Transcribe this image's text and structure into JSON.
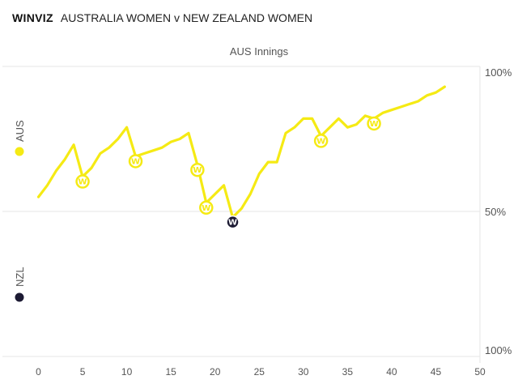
{
  "header": {
    "brand": "WINVIZ",
    "match": "AUSTRALIA WOMEN v NEW ZEALAND WOMEN"
  },
  "chart_data": {
    "type": "line",
    "title": "AUS Innings",
    "xlabel": "",
    "ylabel": "",
    "x_ticks": [
      "0",
      "5",
      "10",
      "15",
      "20",
      "25",
      "30",
      "35",
      "40",
      "45",
      "50"
    ],
    "xlim": [
      -2,
      50
    ],
    "ylim": [
      0,
      100
    ],
    "y_tick_labels": [
      {
        "value": 100,
        "label": "100%"
      },
      {
        "value": 50,
        "label": "50%"
      },
      {
        "value": 0,
        "label": "100%"
      }
    ],
    "team_top": "AUS",
    "team_bottom": "NZL",
    "colors": {
      "aus": "#f5ea14",
      "nzl": "#1c1a33",
      "grid": "#e6e6e6"
    },
    "series": [
      {
        "values": [
          [
            0,
            55
          ],
          [
            1,
            59
          ],
          [
            2,
            64
          ],
          [
            3,
            68
          ],
          [
            4,
            73
          ],
          [
            5,
            62
          ],
          [
            6,
            65
          ],
          [
            7,
            70
          ],
          [
            8,
            72
          ],
          [
            9,
            75
          ],
          [
            10,
            79
          ],
          [
            11,
            69
          ],
          [
            12,
            70
          ],
          [
            13,
            71
          ],
          [
            14,
            72
          ],
          [
            15,
            74
          ],
          [
            16,
            75
          ],
          [
            17,
            77
          ],
          [
            18,
            66
          ],
          [
            19,
            53
          ],
          [
            20,
            56
          ],
          [
            21,
            59
          ],
          [
            22,
            48
          ],
          [
            23,
            51
          ],
          [
            24,
            56
          ],
          [
            25,
            63
          ],
          [
            26,
            67
          ],
          [
            27,
            67
          ],
          [
            28,
            77
          ],
          [
            29,
            79
          ],
          [
            30,
            82
          ],
          [
            31,
            82
          ],
          [
            32,
            76
          ],
          [
            33,
            79
          ],
          [
            34,
            82
          ],
          [
            35,
            79
          ],
          [
            36,
            80
          ],
          [
            37,
            83
          ],
          [
            38,
            82
          ],
          [
            39,
            84
          ],
          [
            40,
            85
          ],
          [
            41,
            86
          ],
          [
            42,
            87
          ],
          [
            43,
            88
          ],
          [
            44,
            90
          ],
          [
            45,
            91
          ],
          [
            46,
            93
          ]
        ]
      }
    ],
    "wickets": [
      {
        "x": 5,
        "y": 62,
        "team": "aus"
      },
      {
        "x": 11,
        "y": 69,
        "team": "aus"
      },
      {
        "x": 18,
        "y": 66,
        "team": "aus"
      },
      {
        "x": 19,
        "y": 53,
        "team": "aus"
      },
      {
        "x": 22,
        "y": 48,
        "team": "nzl"
      },
      {
        "x": 32,
        "y": 76,
        "team": "aus"
      },
      {
        "x": 38,
        "y": 82,
        "team": "aus"
      }
    ],
    "wicket_symbol": "W"
  }
}
